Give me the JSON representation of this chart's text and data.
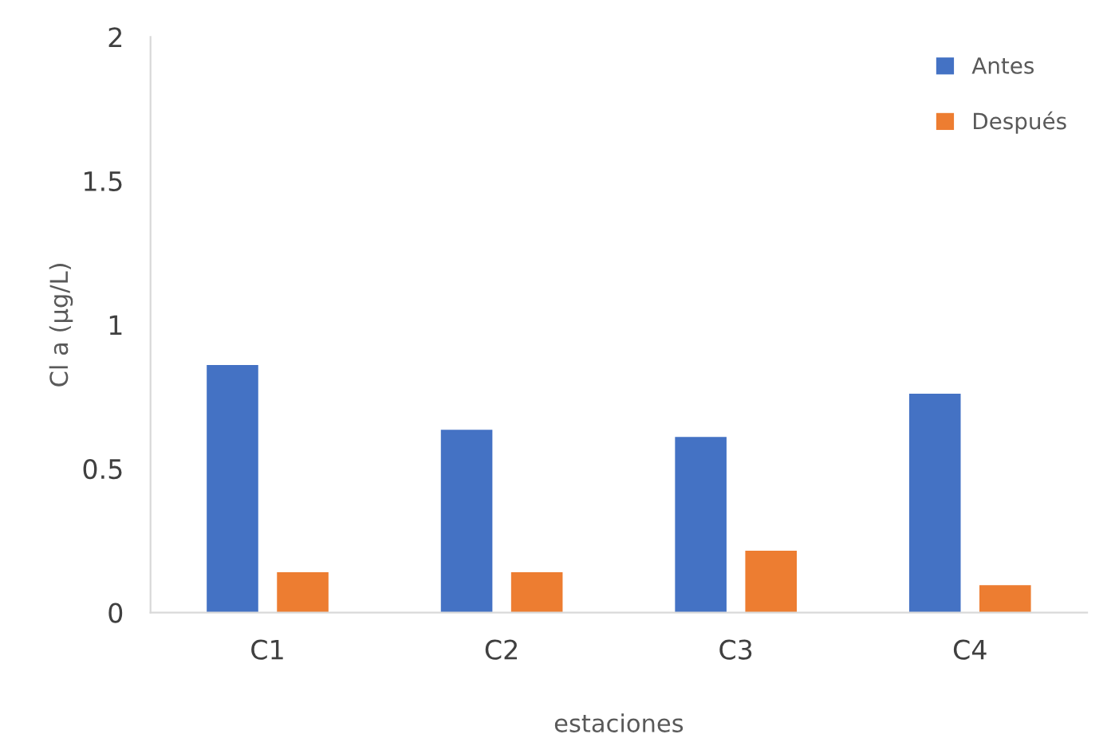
{
  "chart_data": {
    "type": "bar",
    "xlabel": "estaciones",
    "ylabel": "Cl a (µg/L)",
    "categories": [
      "C1",
      "C2",
      "C3",
      "C4"
    ],
    "series": [
      {
        "name": "Antes",
        "color": "#4472c4",
        "values": [
          0.86,
          0.635,
          0.61,
          0.76
        ]
      },
      {
        "name": "Después",
        "color": "#ed7d31",
        "values": [
          0.14,
          0.14,
          0.215,
          0.095
        ]
      }
    ],
    "ylim": [
      0,
      2
    ],
    "yticks": [
      0,
      0.5,
      1,
      1.5,
      2
    ],
    "grid": false,
    "legend": "top right"
  }
}
